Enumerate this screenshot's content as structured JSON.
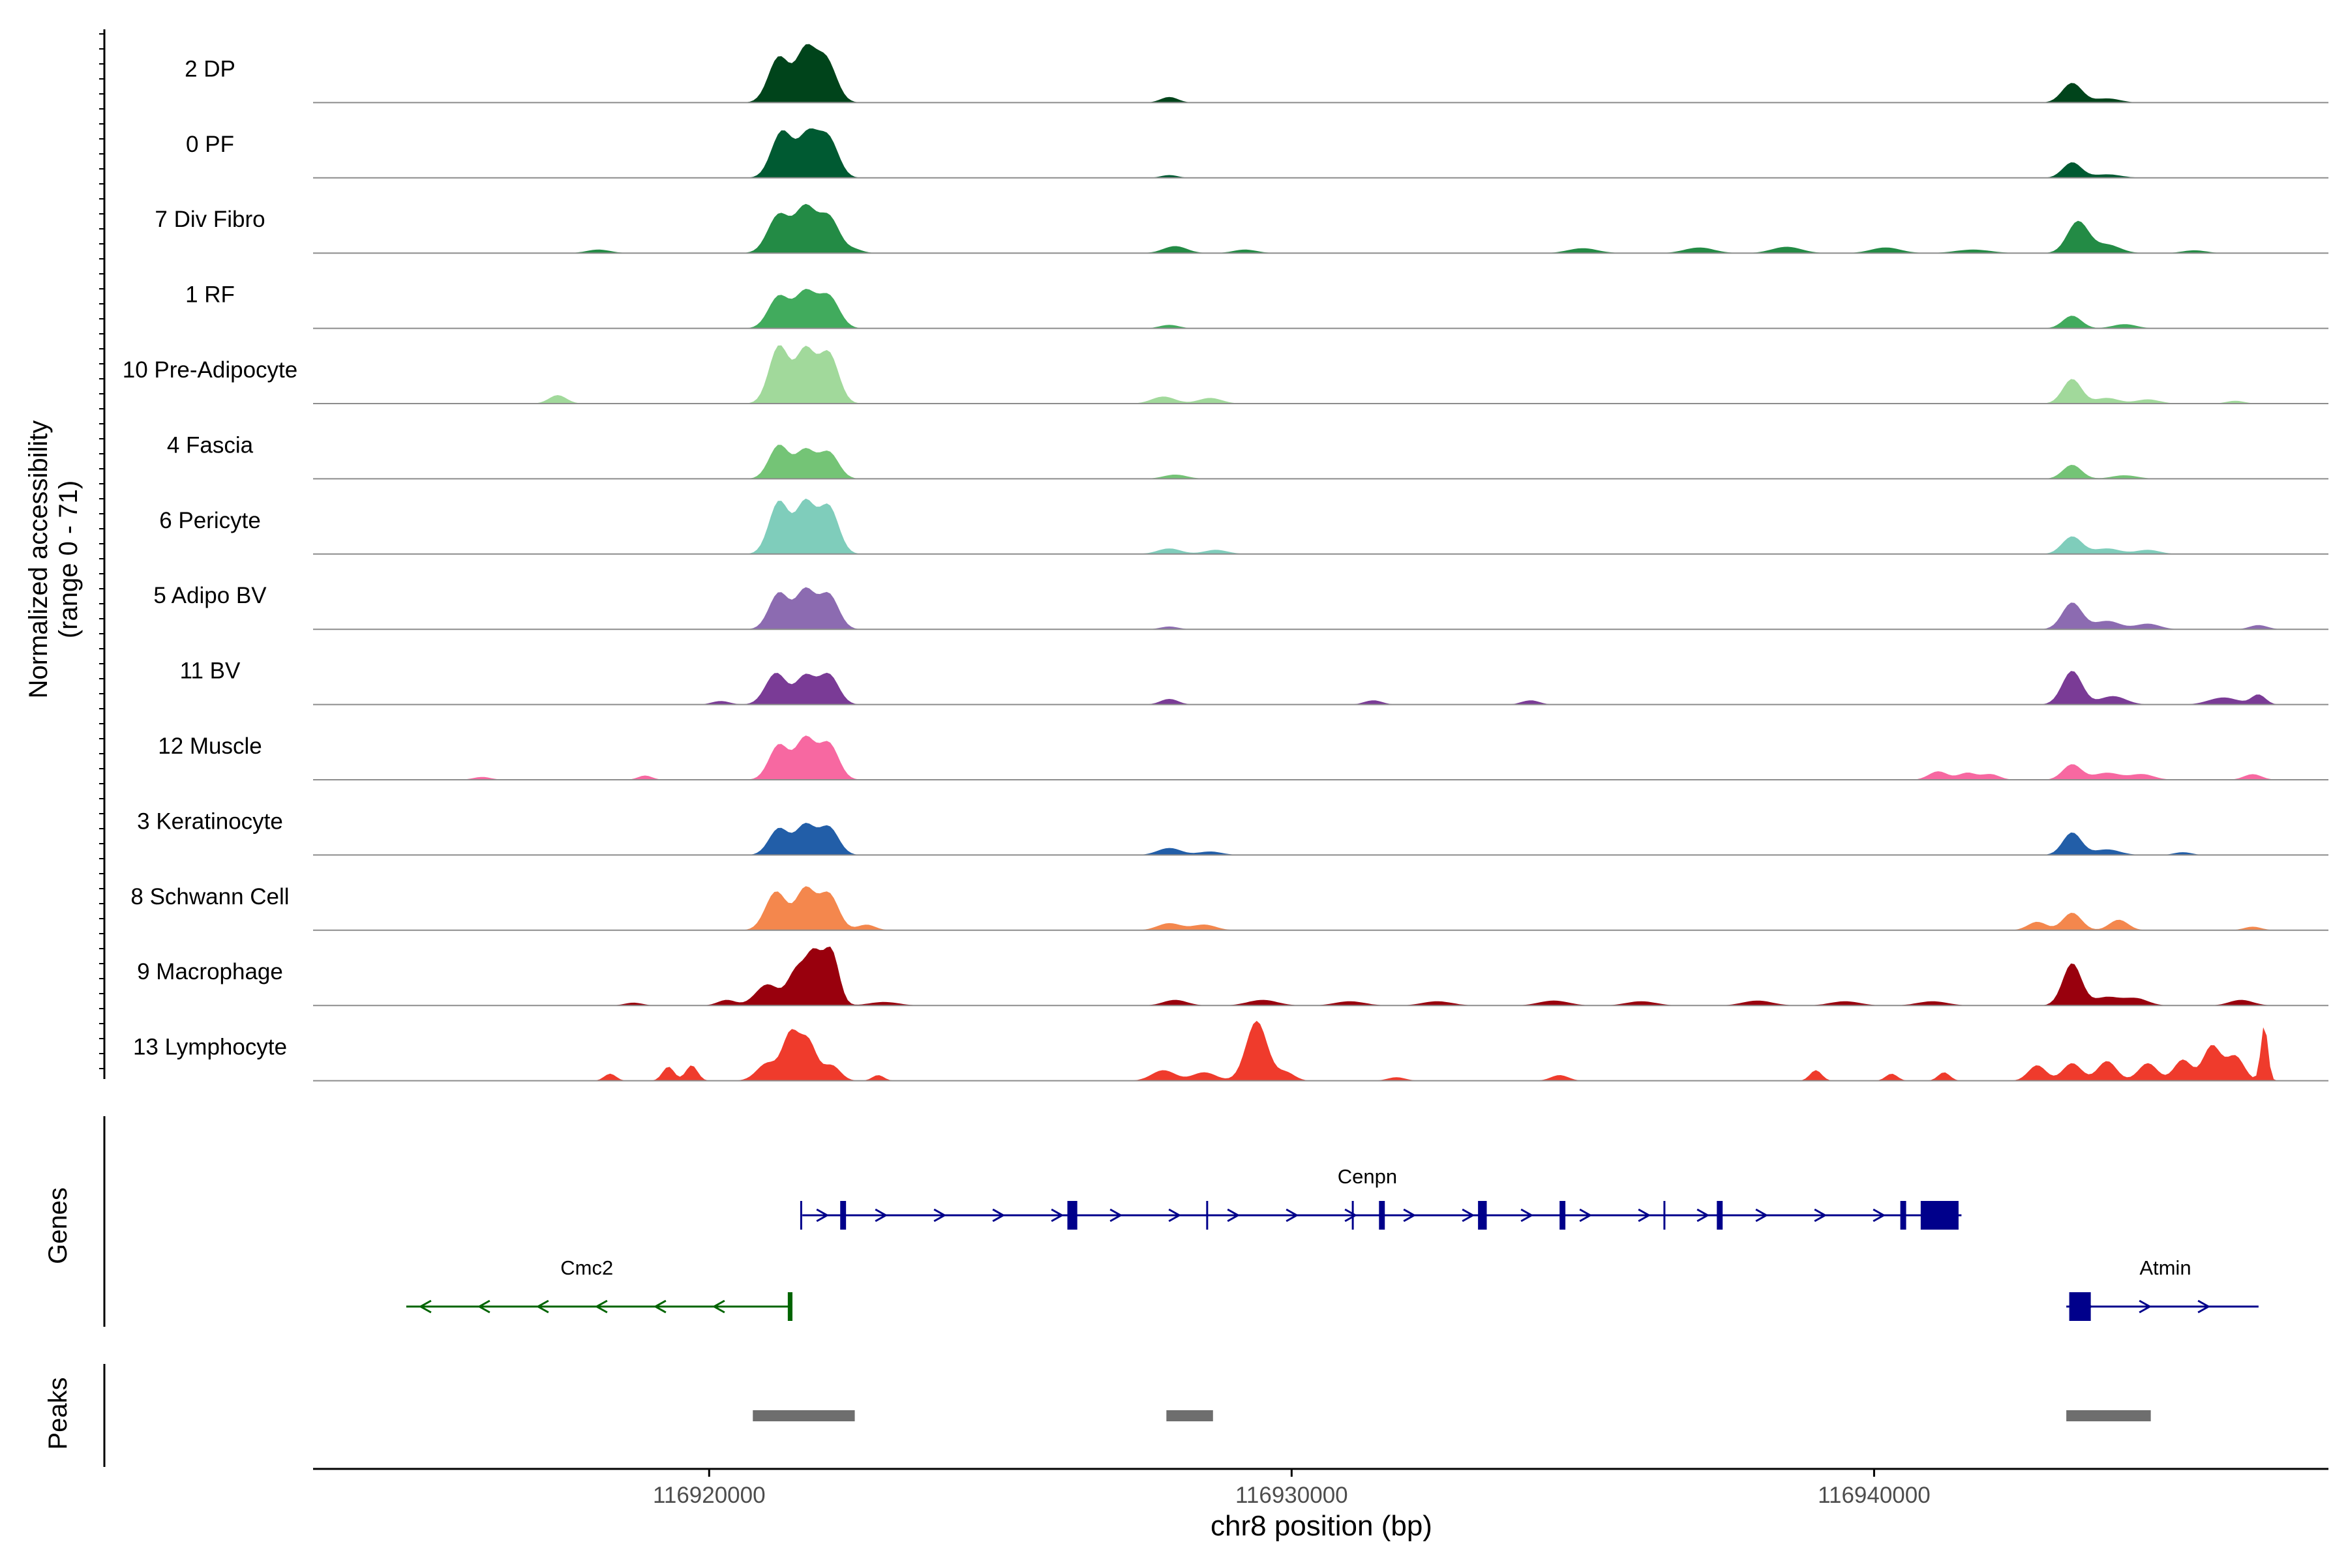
{
  "chart_data": {
    "type": "area",
    "chromosome": "chr8",
    "region": [
      116913200,
      116947800
    ],
    "xlabel": "chr8 position (bp)",
    "ylabel_line1": "Normalized accessibility",
    "ylabel_line2": "(range 0 - 71)",
    "y_range": [
      0,
      71
    ],
    "x_ticks": [
      116920000,
      116930000,
      116940000
    ],
    "x_tick_labels": [
      "116920000",
      "116930000",
      "116940000"
    ],
    "tracks": [
      {
        "name": "2 DP",
        "color": "#00441b",
        "peaks": [
          [
            116921200,
            0.65,
            180
          ],
          [
            116921650,
            0.7,
            160
          ],
          [
            116922000,
            0.62,
            180
          ],
          [
            116927900,
            0.08,
            150
          ],
          [
            116943400,
            0.28,
            170
          ],
          [
            116944000,
            0.06,
            220
          ]
        ]
      },
      {
        "name": "0 PF",
        "color": "#005a32",
        "peaks": [
          [
            116921250,
            0.66,
            180
          ],
          [
            116921700,
            0.6,
            170
          ],
          [
            116922050,
            0.55,
            170
          ],
          [
            116927900,
            0.04,
            140
          ],
          [
            116943400,
            0.22,
            160
          ],
          [
            116944000,
            0.05,
            240
          ]
        ]
      },
      {
        "name": "7 Div Fibro",
        "color": "#238b45",
        "peaks": [
          [
            116921200,
            0.55,
            190
          ],
          [
            116921650,
            0.62,
            170
          ],
          [
            116922050,
            0.52,
            180
          ],
          [
            116922500,
            0.05,
            140
          ],
          [
            116918100,
            0.05,
            200
          ],
          [
            116928000,
            0.1,
            200
          ],
          [
            116929200,
            0.05,
            200
          ],
          [
            116935000,
            0.07,
            250
          ],
          [
            116937000,
            0.08,
            250
          ],
          [
            116938500,
            0.09,
            250
          ],
          [
            116940200,
            0.08,
            250
          ],
          [
            116943500,
            0.45,
            180
          ],
          [
            116944000,
            0.12,
            220
          ],
          [
            116941700,
            0.05,
            300
          ],
          [
            116945500,
            0.04,
            200
          ]
        ]
      },
      {
        "name": "1 RF",
        "color": "#41ab5d",
        "peaks": [
          [
            116921200,
            0.46,
            180
          ],
          [
            116921650,
            0.5,
            170
          ],
          [
            116922050,
            0.46,
            180
          ],
          [
            116927900,
            0.05,
            160
          ],
          [
            116943400,
            0.18,
            160
          ],
          [
            116944300,
            0.06,
            200
          ]
        ]
      },
      {
        "name": "10 Pre-Adipocyte",
        "color": "#a1d99b",
        "peaks": [
          [
            116921200,
            0.82,
            170
          ],
          [
            116921650,
            0.75,
            160
          ],
          [
            116922050,
            0.72,
            170
          ],
          [
            116917400,
            0.12,
            150
          ],
          [
            116927800,
            0.1,
            200
          ],
          [
            116928600,
            0.08,
            200
          ],
          [
            116943400,
            0.35,
            160
          ],
          [
            116944000,
            0.08,
            200
          ],
          [
            116944700,
            0.06,
            200
          ],
          [
            116946200,
            0.04,
            150
          ]
        ]
      },
      {
        "name": "4 Fascia",
        "color": "#74c476",
        "peaks": [
          [
            116921200,
            0.48,
            170
          ],
          [
            116921650,
            0.4,
            160
          ],
          [
            116922050,
            0.38,
            170
          ],
          [
            116928000,
            0.06,
            200
          ],
          [
            116943400,
            0.2,
            160
          ],
          [
            116944300,
            0.05,
            220
          ]
        ]
      },
      {
        "name": "6 Pericyte",
        "color": "#7fcdbb",
        "peaks": [
          [
            116921200,
            0.75,
            170
          ],
          [
            116921650,
            0.72,
            160
          ],
          [
            116922050,
            0.68,
            170
          ],
          [
            116927900,
            0.08,
            200
          ],
          [
            116928700,
            0.06,
            200
          ],
          [
            116943400,
            0.25,
            170
          ],
          [
            116944000,
            0.08,
            220
          ],
          [
            116944700,
            0.06,
            200
          ]
        ]
      },
      {
        "name": "5 Adipo BV",
        "color": "#8c6bb1",
        "peaks": [
          [
            116921200,
            0.52,
            170
          ],
          [
            116921650,
            0.55,
            160
          ],
          [
            116922050,
            0.5,
            170
          ],
          [
            116927900,
            0.04,
            150
          ],
          [
            116943400,
            0.38,
            170
          ],
          [
            116944000,
            0.12,
            220
          ],
          [
            116944700,
            0.08,
            200
          ],
          [
            116946600,
            0.06,
            150
          ]
        ]
      },
      {
        "name": "11 BV",
        "color": "#7a3b96",
        "peaks": [
          [
            116921150,
            0.45,
            180
          ],
          [
            116921650,
            0.4,
            160
          ],
          [
            116922050,
            0.43,
            170
          ],
          [
            116920200,
            0.05,
            150
          ],
          [
            116927900,
            0.08,
            150
          ],
          [
            116931400,
            0.06,
            150
          ],
          [
            116934100,
            0.06,
            150
          ],
          [
            116943400,
            0.48,
            170
          ],
          [
            116944100,
            0.12,
            220
          ],
          [
            116946000,
            0.1,
            250
          ],
          [
            116946600,
            0.14,
            120
          ]
        ]
      },
      {
        "name": "12 Muscle",
        "color": "#f768a1",
        "peaks": [
          [
            116921200,
            0.5,
            170
          ],
          [
            116921650,
            0.58,
            160
          ],
          [
            116922050,
            0.52,
            170
          ],
          [
            116918900,
            0.06,
            120
          ],
          [
            116916100,
            0.04,
            150
          ],
          [
            116941100,
            0.12,
            160
          ],
          [
            116941600,
            0.1,
            150
          ],
          [
            116942000,
            0.08,
            150
          ],
          [
            116943400,
            0.22,
            160
          ],
          [
            116944000,
            0.1,
            220
          ],
          [
            116944600,
            0.08,
            200
          ],
          [
            116946500,
            0.08,
            150
          ]
        ]
      },
      {
        "name": "3 Keratinocyte",
        "color": "#225ea8",
        "peaks": [
          [
            116921200,
            0.38,
            170
          ],
          [
            116921650,
            0.42,
            160
          ],
          [
            116922050,
            0.4,
            170
          ],
          [
            116927900,
            0.1,
            200
          ],
          [
            116928600,
            0.05,
            200
          ],
          [
            116943400,
            0.32,
            160
          ],
          [
            116944000,
            0.08,
            220
          ],
          [
            116945300,
            0.04,
            150
          ]
        ]
      },
      {
        "name": "8 Schwann Cell",
        "color": "#f4874d",
        "peaks": [
          [
            116921150,
            0.55,
            180
          ],
          [
            116921650,
            0.58,
            160
          ],
          [
            116922050,
            0.52,
            170
          ],
          [
            116922700,
            0.08,
            150
          ],
          [
            116927900,
            0.1,
            200
          ],
          [
            116928500,
            0.08,
            200
          ],
          [
            116942800,
            0.12,
            160
          ],
          [
            116943400,
            0.25,
            160
          ],
          [
            116944200,
            0.15,
            160
          ],
          [
            116946500,
            0.05,
            150
          ]
        ]
      },
      {
        "name": "9 Macrophage",
        "color": "#99000d",
        "peaks": [
          [
            116921000,
            0.3,
            200
          ],
          [
            116921500,
            0.48,
            150
          ],
          [
            116921800,
            0.7,
            140
          ],
          [
            116922100,
            0.75,
            130
          ],
          [
            116920300,
            0.08,
            150
          ],
          [
            116923000,
            0.05,
            250
          ],
          [
            116928000,
            0.08,
            200
          ],
          [
            116929500,
            0.08,
            250
          ],
          [
            116931000,
            0.06,
            250
          ],
          [
            116932500,
            0.06,
            250
          ],
          [
            116934500,
            0.07,
            250
          ],
          [
            116936000,
            0.06,
            250
          ],
          [
            116938000,
            0.07,
            250
          ],
          [
            116939500,
            0.06,
            250
          ],
          [
            116941000,
            0.06,
            250
          ],
          [
            116943400,
            0.6,
            160
          ],
          [
            116944000,
            0.12,
            220
          ],
          [
            116944500,
            0.1,
            200
          ],
          [
            116946300,
            0.08,
            200
          ],
          [
            116918700,
            0.04,
            150
          ]
        ]
      },
      {
        "name": "13 Lymphocyte",
        "color": "#ef3b2c",
        "peaks": [
          [
            116921000,
            0.25,
            180
          ],
          [
            116921400,
            0.65,
            140
          ],
          [
            116921700,
            0.55,
            140
          ],
          [
            116922100,
            0.22,
            150
          ],
          [
            116918300,
            0.1,
            100
          ],
          [
            116919300,
            0.2,
            100
          ],
          [
            116919700,
            0.22,
            100
          ],
          [
            116922900,
            0.08,
            100
          ],
          [
            116927800,
            0.15,
            200
          ],
          [
            116928500,
            0.12,
            200
          ],
          [
            116929400,
            0.85,
            180
          ],
          [
            116929900,
            0.12,
            150
          ],
          [
            116931800,
            0.05,
            150
          ],
          [
            116934600,
            0.08,
            150
          ],
          [
            116939000,
            0.15,
            100
          ],
          [
            116940300,
            0.1,
            100
          ],
          [
            116941200,
            0.12,
            100
          ],
          [
            116942800,
            0.22,
            150
          ],
          [
            116943400,
            0.25,
            160
          ],
          [
            116944000,
            0.28,
            160
          ],
          [
            116944700,
            0.25,
            160
          ],
          [
            116945300,
            0.3,
            150
          ],
          [
            116945800,
            0.5,
            150
          ],
          [
            116946200,
            0.35,
            150
          ],
          [
            116946700,
            0.8,
            60
          ]
        ]
      }
    ],
    "genes": [
      {
        "name": "Cenpn",
        "strand": "+",
        "color": "#00008b",
        "row": 0,
        "start": 116921600,
        "end": 116941500,
        "exons": [
          [
            116921580,
            116921640,
            "line"
          ],
          [
            116922250,
            116922350,
            "small"
          ],
          [
            116926150,
            116926320,
            "small"
          ],
          [
            116928550,
            116928610,
            "line"
          ],
          [
            116931050,
            116931110,
            "line"
          ],
          [
            116931500,
            116931600,
            "small"
          ],
          [
            116933200,
            116933350,
            "small"
          ],
          [
            116934600,
            116934700,
            "small"
          ],
          [
            116936400,
            116936460,
            "line"
          ],
          [
            116937300,
            116937400,
            "small"
          ],
          [
            116940450,
            116940550,
            "small"
          ],
          [
            116940800,
            116941450,
            "big"
          ]
        ]
      },
      {
        "name": "Cmc2",
        "strand": "-",
        "color": "#006400",
        "row": 1,
        "start": 116914800,
        "end": 116921400,
        "exons": [
          [
            116921350,
            116921430,
            "small"
          ]
        ]
      },
      {
        "name": "Atmin",
        "strand": "+",
        "color": "#00008b",
        "row": 1,
        "start": 116943300,
        "end": 116946600,
        "exons": [
          [
            116943350,
            116943720,
            "big"
          ]
        ]
      }
    ],
    "peak_regions": [
      [
        116920750,
        116922500
      ],
      [
        116927850,
        116928650
      ],
      [
        116943300,
        116944750
      ]
    ],
    "panel_labels": {
      "genes": "Genes",
      "peaks": "Peaks"
    }
  }
}
